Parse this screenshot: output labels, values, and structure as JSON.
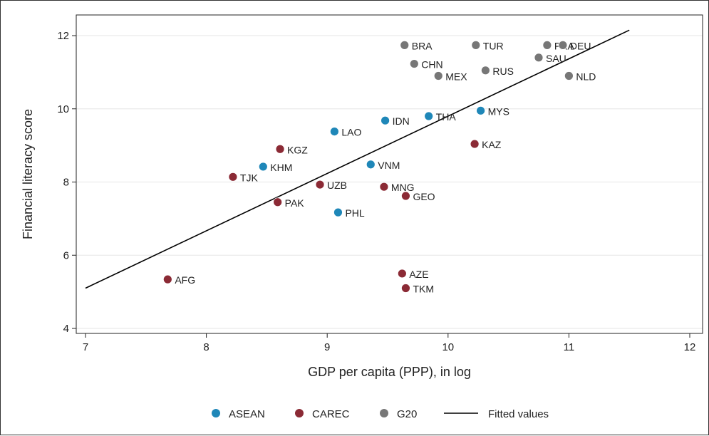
{
  "chart_data": {
    "type": "scatter",
    "xlabel": "GDP per capita (PPP), in log",
    "ylabel": "Financial literacy score",
    "xlim": [
      7,
      12
    ],
    "ylim": [
      4,
      12.2
    ],
    "xticks": [
      7,
      8,
      9,
      10,
      11,
      12
    ],
    "yticks": [
      4,
      6,
      8,
      10,
      12
    ],
    "grid": "horizontal",
    "legend_position": "bottom",
    "colors": {
      "ASEAN": "#1f87b8",
      "CAREC": "#8b2a35",
      "G20": "#777777",
      "fit": "#000000"
    },
    "series": [
      {
        "name": "ASEAN",
        "points": [
          {
            "label": "IDN",
            "x": 9.48,
            "y": 9.68
          },
          {
            "label": "THA",
            "x": 9.84,
            "y": 9.8
          },
          {
            "label": "MYS",
            "x": 10.27,
            "y": 9.95
          },
          {
            "label": "LAO",
            "x": 9.06,
            "y": 9.38
          },
          {
            "label": "KHM",
            "x": 8.47,
            "y": 8.42
          },
          {
            "label": "VNM",
            "x": 9.36,
            "y": 8.48
          },
          {
            "label": "PHL",
            "x": 9.09,
            "y": 7.17
          }
        ]
      },
      {
        "name": "CAREC",
        "points": [
          {
            "label": "KGZ",
            "x": 8.61,
            "y": 8.9
          },
          {
            "label": "TJK",
            "x": 8.22,
            "y": 8.14
          },
          {
            "label": "UZB",
            "x": 8.94,
            "y": 7.93
          },
          {
            "label": "PAK",
            "x": 8.59,
            "y": 7.45
          },
          {
            "label": "MNG",
            "x": 9.47,
            "y": 7.87
          },
          {
            "label": "GEO",
            "x": 9.65,
            "y": 7.62
          },
          {
            "label": "KAZ",
            "x": 10.22,
            "y": 9.04
          },
          {
            "label": "AFG",
            "x": 7.68,
            "y": 5.34
          },
          {
            "label": "AZE",
            "x": 9.62,
            "y": 5.5
          },
          {
            "label": "TKM",
            "x": 9.65,
            "y": 5.1
          }
        ]
      },
      {
        "name": "G20",
        "points": [
          {
            "label": "BRA",
            "x": 9.64,
            "y": 11.74
          },
          {
            "label": "TUR",
            "x": 10.23,
            "y": 11.74
          },
          {
            "label": "FRA",
            "x": 10.82,
            "y": 11.74
          },
          {
            "label": "DEU",
            "x": 10.95,
            "y": 11.74
          },
          {
            "label": "SAU",
            "x": 10.75,
            "y": 11.4
          },
          {
            "label": "CHN",
            "x": 9.72,
            "y": 11.23
          },
          {
            "label": "MEX",
            "x": 9.92,
            "y": 10.9
          },
          {
            "label": "RUS",
            "x": 10.31,
            "y": 11.05
          },
          {
            "label": "NLD",
            "x": 11.0,
            "y": 10.9
          }
        ]
      }
    ],
    "fitted_line": {
      "name": "Fitted values",
      "x": [
        7.0,
        11.5
      ],
      "y": [
        5.1,
        12.15
      ]
    }
  }
}
